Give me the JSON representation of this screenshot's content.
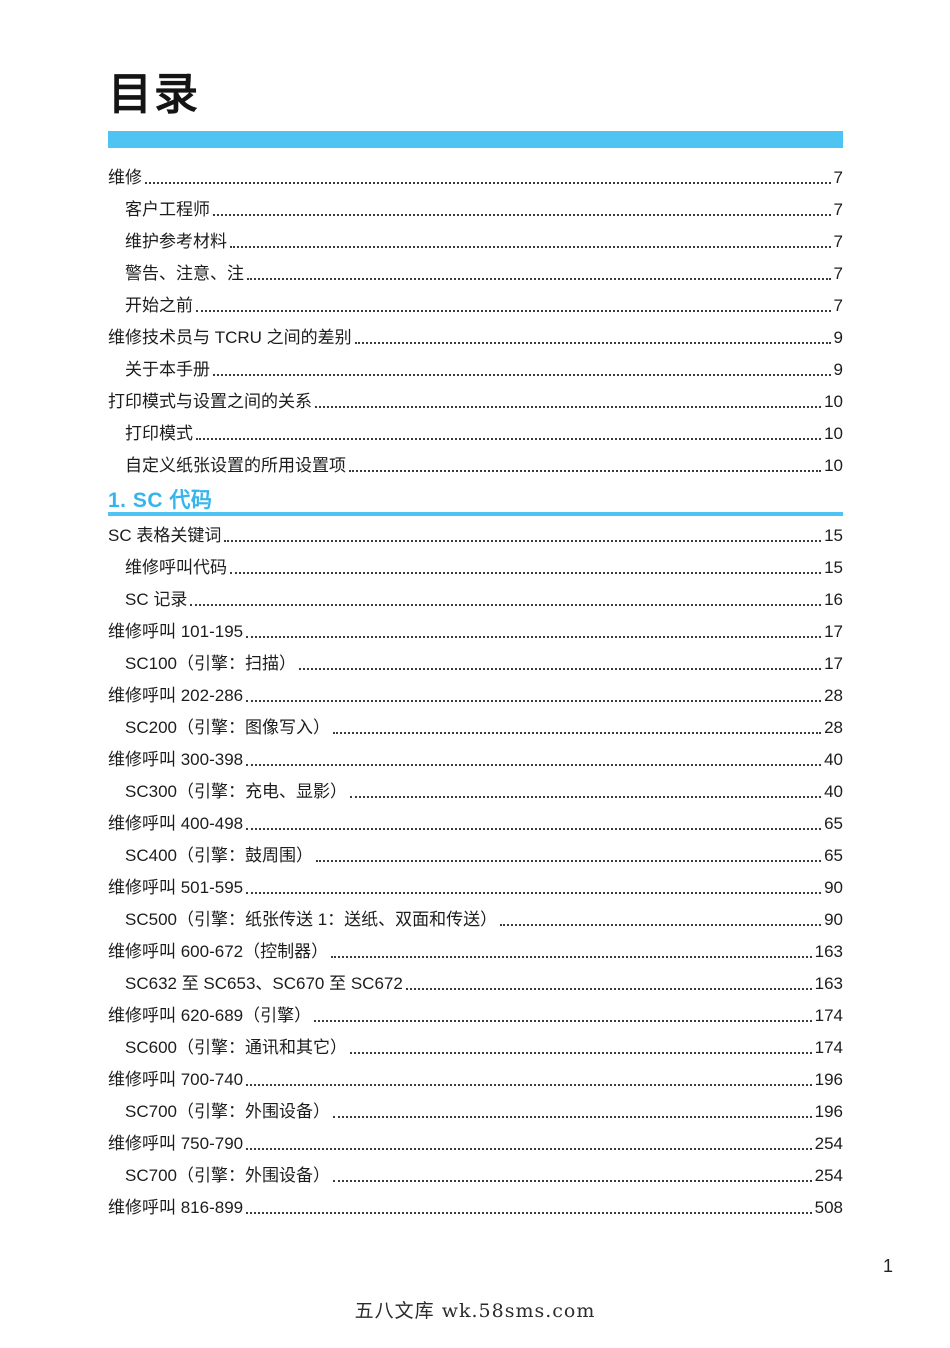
{
  "document": {
    "title": "目录",
    "page_number": "1",
    "footer_text": "五八文库 wk.58sms.com"
  },
  "colors": {
    "accent_bar": "#4FC3F2",
    "section_heading_text": "#35B5EC",
    "section_underline": "#4FC3F2"
  },
  "toc": {
    "front_matter": [
      {
        "label": "维修",
        "page": "7",
        "level": 1
      },
      {
        "label": "客户工程师",
        "page": "7",
        "level": 2
      },
      {
        "label": "维护参考材料",
        "page": "7",
        "level": 2
      },
      {
        "label": "警告、注意、注",
        "page": "7",
        "level": 2
      },
      {
        "label": "开始之前",
        "page": "7",
        "level": 2
      },
      {
        "label": "维修技术员与 TCRU 之间的差别",
        "page": "9",
        "level": 1
      },
      {
        "label": "关于本手册",
        "page": "9",
        "level": 2
      },
      {
        "label": "打印模式与设置之间的关系",
        "page": "10",
        "level": 1
      },
      {
        "label": "打印模式",
        "page": "10",
        "level": 2
      },
      {
        "label": "自定义纸张设置的所用设置项",
        "page": "10",
        "level": 2
      }
    ],
    "sections": [
      {
        "heading": "1. SC 代码",
        "entries": [
          {
            "label": "SC 表格关键词",
            "page": "15",
            "level": 1
          },
          {
            "label": "维修呼叫代码",
            "page": "15",
            "level": 2
          },
          {
            "label": "SC 记录",
            "page": "16",
            "level": 2
          },
          {
            "label": "维修呼叫 101-195",
            "page": "17",
            "level": 1
          },
          {
            "label": "SC100（引擎：扫描）",
            "page": "17",
            "level": 2
          },
          {
            "label": "维修呼叫 202-286",
            "page": "28",
            "level": 1
          },
          {
            "label": "SC200（引擎：图像写入）",
            "page": "28",
            "level": 2
          },
          {
            "label": "维修呼叫 300-398",
            "page": "40",
            "level": 1
          },
          {
            "label": "SC300（引擎：充电、显影）",
            "page": "40",
            "level": 2
          },
          {
            "label": "维修呼叫 400-498",
            "page": "65",
            "level": 1
          },
          {
            "label": "SC400（引擎：鼓周围）",
            "page": "65",
            "level": 2
          },
          {
            "label": "维修呼叫 501-595",
            "page": "90",
            "level": 1
          },
          {
            "label": "SC500（引擎：纸张传送 1：送纸、双面和传送）",
            "page": "90",
            "level": 2
          },
          {
            "label": "维修呼叫 600-672（控制器）",
            "page": "163",
            "level": 1
          },
          {
            "label": "SC632 至 SC653、SC670 至 SC672",
            "page": "163",
            "level": 2
          },
          {
            "label": "维修呼叫 620-689（引擎）",
            "page": "174",
            "level": 1
          },
          {
            "label": "SC600（引擎：通讯和其它）",
            "page": "174",
            "level": 2
          },
          {
            "label": "维修呼叫 700-740",
            "page": "196",
            "level": 1
          },
          {
            "label": "SC700（引擎：外围设备）",
            "page": "196",
            "level": 2
          },
          {
            "label": "维修呼叫 750-790",
            "page": "254",
            "level": 1
          },
          {
            "label": "SC700（引擎：外围设备）",
            "page": "254",
            "level": 2
          },
          {
            "label": "维修呼叫 816-899",
            "page": "508",
            "level": 1
          }
        ]
      }
    ]
  }
}
